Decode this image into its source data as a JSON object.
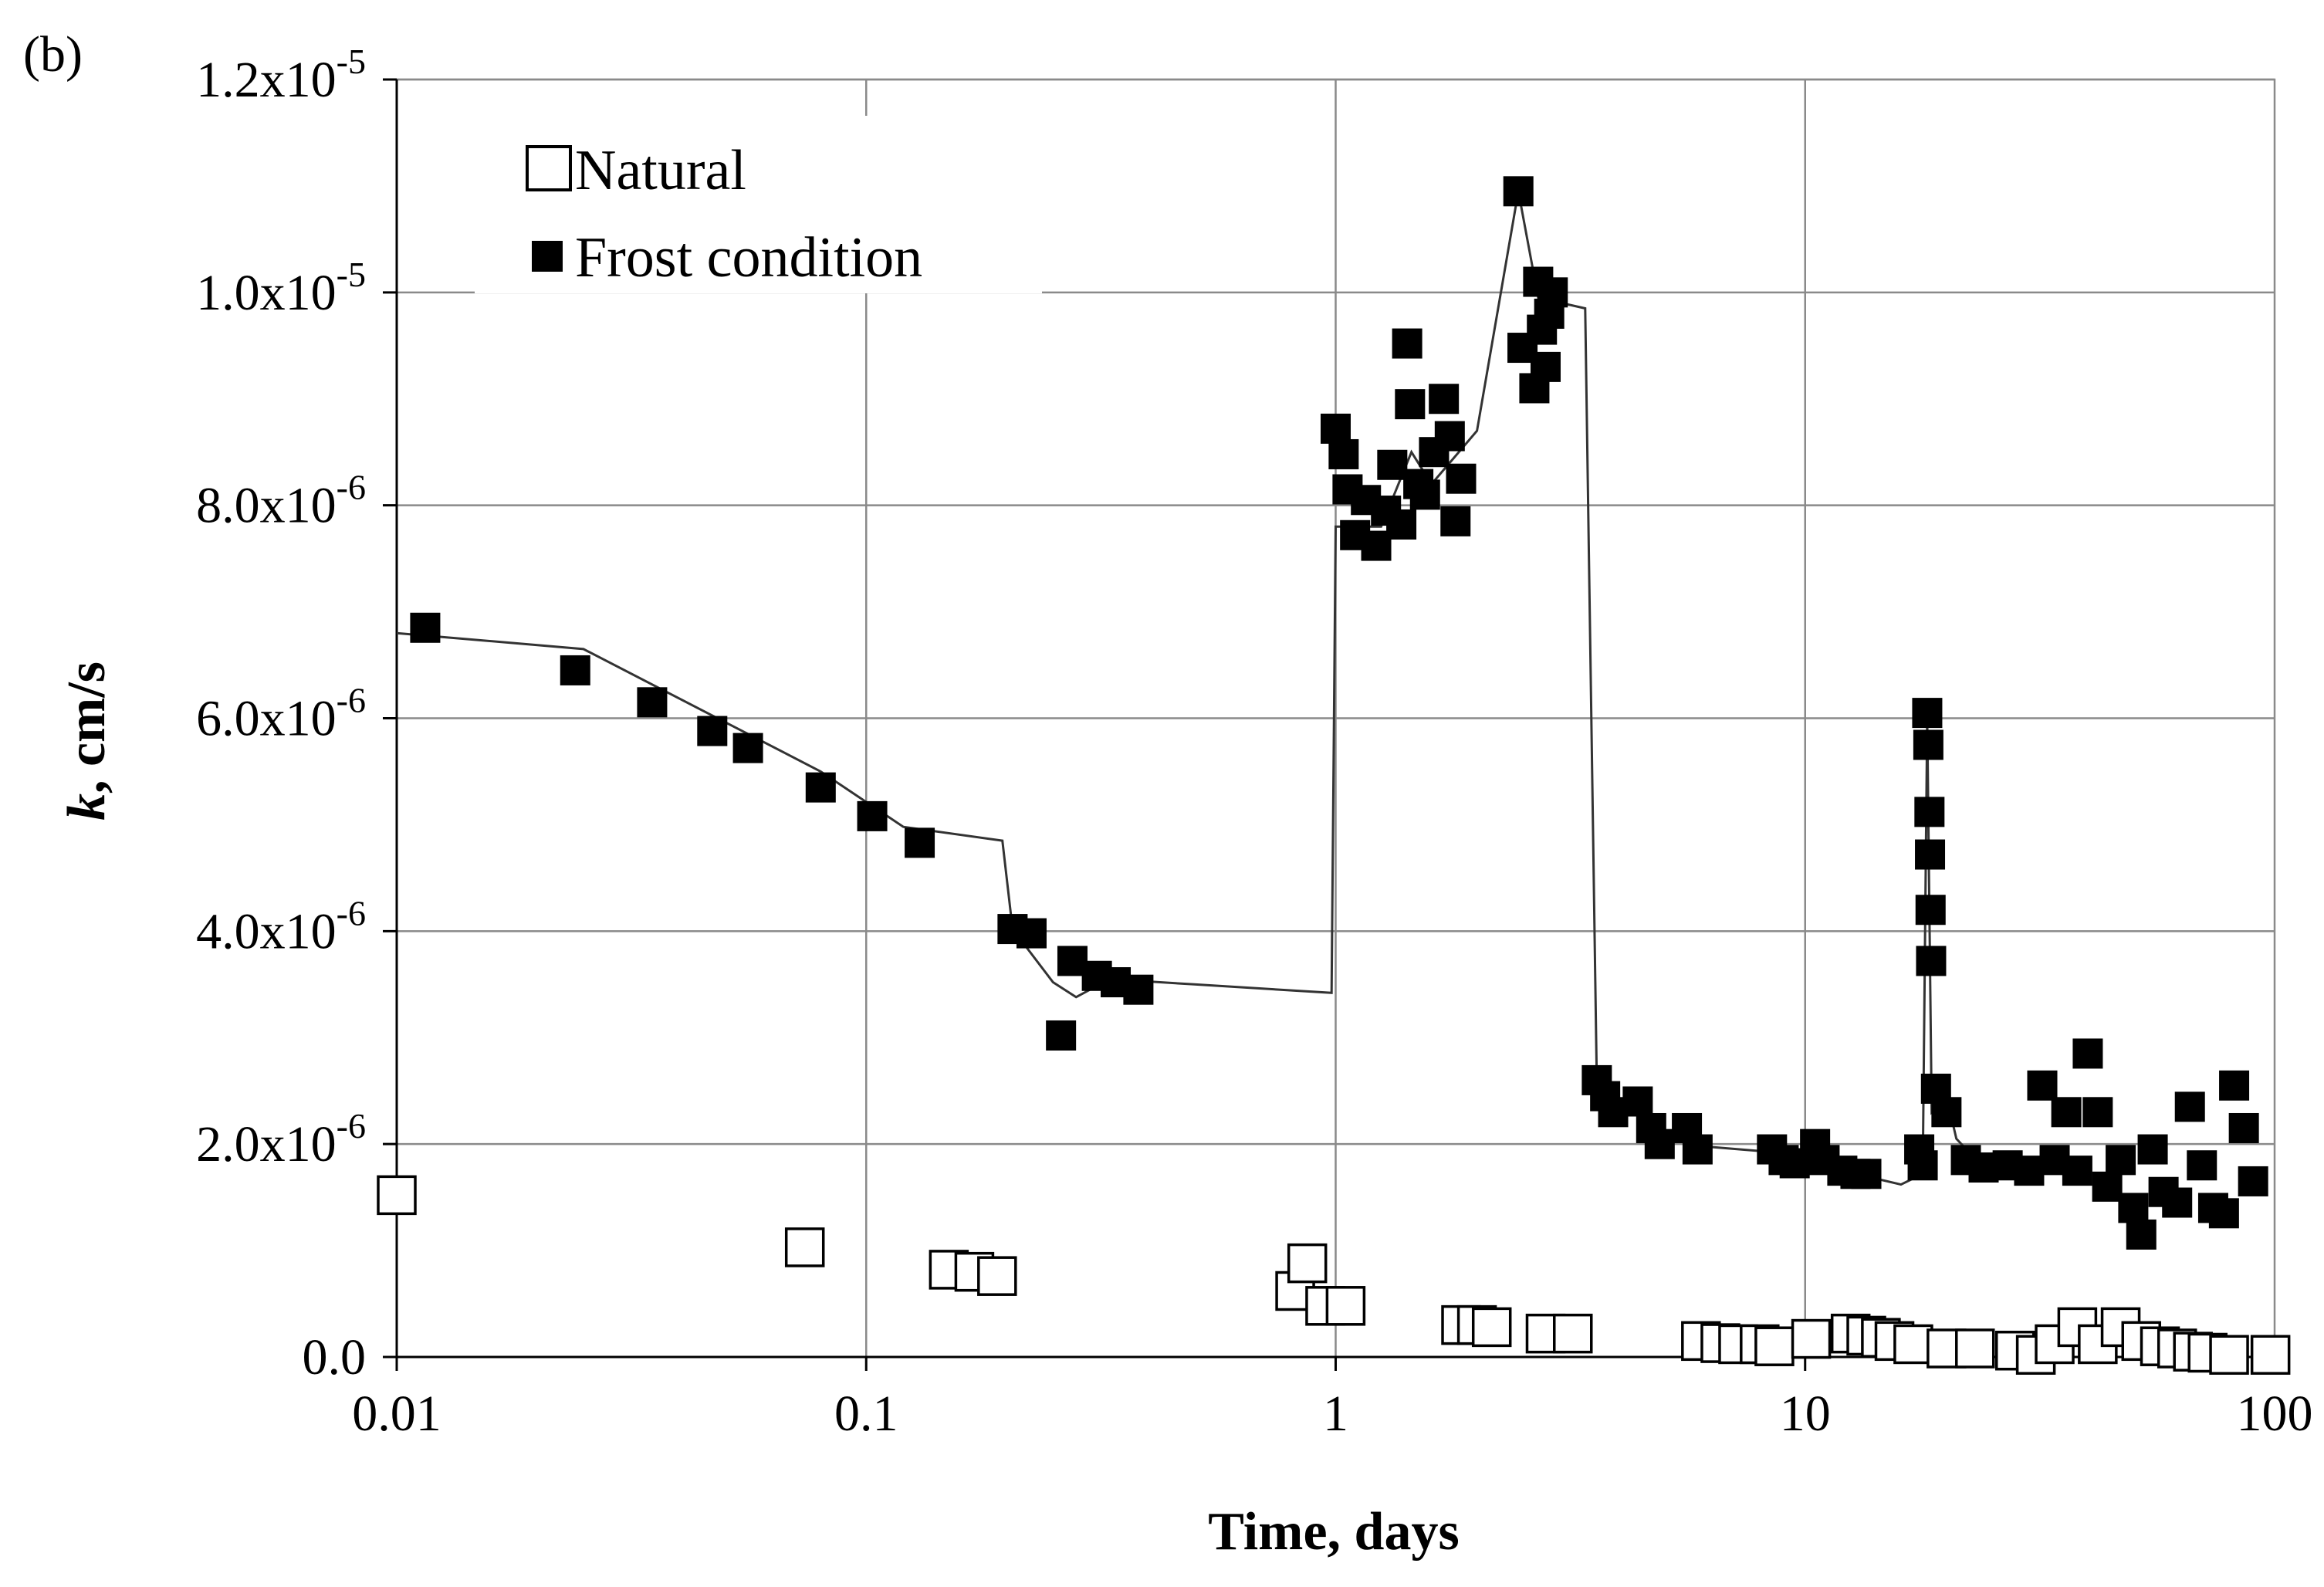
{
  "chart_data": {
    "type": "scatter",
    "panel_label": "(b)",
    "xlabel": "Time, days",
    "ylabel_var": "k",
    "ylabel_unit": ", cm/s",
    "xscale": "log",
    "xlim": [
      0.01,
      100
    ],
    "ylim": [
      0,
      1.2e-05
    ],
    "grid": true,
    "legend_position": "top-left",
    "x_ticks": [
      {
        "value": 0.01,
        "label": "0.01"
      },
      {
        "value": 0.1,
        "label": "0.1"
      },
      {
        "value": 1,
        "label": "1"
      },
      {
        "value": 10,
        "label": "10"
      },
      {
        "value": 100,
        "label": "100"
      }
    ],
    "y_ticks": [
      {
        "value": 0,
        "mant": "0.0",
        "exp": ""
      },
      {
        "value": 2e-06,
        "mant": "2.0x10",
        "exp": "-6"
      },
      {
        "value": 4e-06,
        "mant": "4.0x10",
        "exp": "-6"
      },
      {
        "value": 6e-06,
        "mant": "6.0x10",
        "exp": "-6"
      },
      {
        "value": 8e-06,
        "mant": "8.0x10",
        "exp": "-6"
      },
      {
        "value": 1e-05,
        "mant": "1.0x10",
        "exp": "-5"
      },
      {
        "value": 1.2e-05,
        "mant": "1.2x10",
        "exp": "-5"
      }
    ],
    "series": [
      {
        "name": "Natural",
        "marker": "open-square",
        "color": "#000000",
        "points": [
          [
            0.01,
            1.52e-06
          ],
          [
            0.074,
            1.03e-06
          ],
          [
            0.15,
            8.2e-07
          ],
          [
            0.17,
            8e-07
          ],
          [
            0.19,
            7.6e-07
          ],
          [
            0.82,
            6.2e-07
          ],
          [
            0.87,
            8.8e-07
          ],
          [
            0.95,
            4.8e-07
          ],
          [
            1.05,
            4.8e-07
          ],
          [
            1.85,
            3e-07
          ],
          [
            2.0,
            3e-07
          ],
          [
            2.15,
            2.8e-07
          ],
          [
            2.8,
            2.2e-07
          ],
          [
            3.2,
            2.2e-07
          ],
          [
            6.0,
            1.5e-07
          ],
          [
            6.6,
            1.3e-07
          ],
          [
            7.2,
            1.2e-07
          ],
          [
            8.0,
            1.2e-07
          ],
          [
            8.6,
            1e-07
          ],
          [
            10.3,
            1.7e-07
          ],
          [
            12.5,
            2.2e-07
          ],
          [
            13.5,
            2e-07
          ],
          [
            14.5,
            1.8e-07
          ],
          [
            15.5,
            1.5e-07
          ],
          [
            17.0,
            1.2e-07
          ],
          [
            20.0,
            8e-08
          ],
          [
            23.0,
            8e-08
          ],
          [
            28.0,
            6e-08
          ],
          [
            31.0,
            2e-08
          ],
          [
            34.0,
            1.2e-07
          ],
          [
            38.0,
            2.8e-07
          ],
          [
            42.0,
            1.2e-07
          ],
          [
            47.0,
            2.8e-07
          ],
          [
            52.0,
            1.5e-07
          ],
          [
            57.0,
            1e-07
          ],
          [
            62.0,
            8e-08
          ],
          [
            67.0,
            5e-08
          ],
          [
            72.0,
            4e-08
          ],
          [
            80.0,
            2e-08
          ],
          [
            98.0,
            2e-08
          ]
        ]
      },
      {
        "name": "Frost condition",
        "marker": "filled-square",
        "color": "#000000",
        "points": [
          [
            0.0115,
            6.85e-06
          ],
          [
            0.024,
            6.45e-06
          ],
          [
            0.035,
            6.15e-06
          ],
          [
            0.047,
            5.88e-06
          ],
          [
            0.056,
            5.72e-06
          ],
          [
            0.08,
            5.35e-06
          ],
          [
            0.103,
            5.08e-06
          ],
          [
            0.13,
            4.83e-06
          ],
          [
            0.205,
            4.02e-06
          ],
          [
            0.225,
            3.98e-06
          ],
          [
            0.26,
            3.02e-06
          ],
          [
            0.275,
            3.72e-06
          ],
          [
            0.31,
            3.58e-06
          ],
          [
            0.34,
            3.52e-06
          ],
          [
            0.38,
            3.45e-06
          ],
          [
            1.0,
            8.72e-06
          ],
          [
            1.04,
            8.48e-06
          ],
          [
            1.06,
            8.15e-06
          ],
          [
            1.1,
            7.72e-06
          ],
          [
            1.16,
            8.05e-06
          ],
          [
            1.22,
            7.62e-06
          ],
          [
            1.28,
            7.95e-06
          ],
          [
            1.32,
            8.38e-06
          ],
          [
            1.38,
            7.82e-06
          ],
          [
            1.42,
            9.52e-06
          ],
          [
            1.44,
            8.95e-06
          ],
          [
            1.5,
            8.2e-06
          ],
          [
            1.55,
            8.1e-06
          ],
          [
            1.62,
            8.5e-06
          ],
          [
            1.7,
            9e-06
          ],
          [
            1.75,
            8.65e-06
          ],
          [
            1.8,
            7.85e-06
          ],
          [
            1.85,
            8.25e-06
          ],
          [
            2.45,
            1.095e-05
          ],
          [
            2.5,
            9.48e-06
          ],
          [
            2.65,
            9.1e-06
          ],
          [
            2.7,
            1.01e-05
          ],
          [
            2.75,
            9.65e-06
          ],
          [
            2.8,
            9.3e-06
          ],
          [
            2.85,
            9.8e-06
          ],
          [
            2.9,
            1e-05
          ],
          [
            3.6,
            2.6e-06
          ],
          [
            3.75,
            2.45e-06
          ],
          [
            3.9,
            2.3e-06
          ],
          [
            4.4,
            2.4e-06
          ],
          [
            4.7,
            2.15e-06
          ],
          [
            4.9,
            2e-06
          ],
          [
            5.6,
            2.15e-06
          ],
          [
            5.9,
            1.95e-06
          ],
          [
            8.5,
            1.95e-06
          ],
          [
            9.0,
            1.85e-06
          ],
          [
            9.5,
            1.82e-06
          ],
          [
            10.5,
            2e-06
          ],
          [
            11.0,
            1.85e-06
          ],
          [
            12.0,
            1.75e-06
          ],
          [
            12.8,
            1.72e-06
          ],
          [
            13.5,
            1.72e-06
          ],
          [
            17.5,
            1.95e-06
          ],
          [
            17.8,
            1.8e-06
          ],
          [
            18.2,
            6.05e-06
          ],
          [
            18.3,
            5.75e-06
          ],
          [
            18.4,
            5.12e-06
          ],
          [
            18.45,
            4.72e-06
          ],
          [
            18.5,
            4.2e-06
          ],
          [
            18.55,
            3.72e-06
          ],
          [
            19.0,
            2.52e-06
          ],
          [
            20.0,
            2.3e-06
          ],
          [
            22.0,
            1.85e-06
          ],
          [
            24.0,
            1.78e-06
          ],
          [
            27.0,
            1.8e-06
          ],
          [
            30.0,
            1.75e-06
          ],
          [
            32.0,
            2.55e-06
          ],
          [
            34.0,
            1.85e-06
          ],
          [
            36.0,
            2.3e-06
          ],
          [
            38.0,
            1.75e-06
          ],
          [
            40.0,
            2.85e-06
          ],
          [
            42.0,
            2.3e-06
          ],
          [
            44.0,
            1.6e-06
          ],
          [
            47.0,
            1.85e-06
          ],
          [
            50.0,
            1.4e-06
          ],
          [
            52.0,
            1.15e-06
          ],
          [
            55.0,
            1.95e-06
          ],
          [
            58.0,
            1.55e-06
          ],
          [
            62.0,
            1.45e-06
          ],
          [
            66.0,
            2.35e-06
          ],
          [
            70.0,
            1.8e-06
          ],
          [
            74.0,
            1.4e-06
          ],
          [
            78.0,
            1.35e-06
          ],
          [
            82.0,
            2.55e-06
          ],
          [
            86.0,
            2.15e-06
          ],
          [
            90.0,
            1.65e-06
          ]
        ]
      }
    ],
    "trend_line": {
      "name": "Frost condition trend",
      "points": [
        [
          0.01,
          6.8e-06
        ],
        [
          0.025,
          6.65e-06
        ],
        [
          0.08,
          5.5e-06
        ],
        [
          0.12,
          4.98e-06
        ],
        [
          0.195,
          4.85e-06
        ],
        [
          0.205,
          4.02e-06
        ],
        [
          0.25,
          3.52e-06
        ],
        [
          0.28,
          3.38e-06
        ],
        [
          0.33,
          3.55e-06
        ],
        [
          0.5,
          3.5e-06
        ],
        [
          0.98,
          3.42e-06
        ],
        [
          1.0,
          7.8e-06
        ],
        [
          1.25,
          7.8e-06
        ],
        [
          1.45,
          8.5e-06
        ],
        [
          1.6,
          8.2e-06
        ],
        [
          2.0,
          8.7e-06
        ],
        [
          2.45,
          1.095e-05
        ],
        [
          2.7,
          9.95e-06
        ],
        [
          3.4,
          9.85e-06
        ],
        [
          3.6,
          2.55e-06
        ],
        [
          5.0,
          2.1e-06
        ],
        [
          6.0,
          1.98e-06
        ],
        [
          10.0,
          1.9e-06
        ],
        [
          12.0,
          1.75e-06
        ],
        [
          16.0,
          1.62e-06
        ],
        [
          17.8,
          1.72e-06
        ],
        [
          18.2,
          6e-06
        ],
        [
          18.6,
          2.3e-06
        ],
        [
          20.0,
          2.45e-06
        ],
        [
          21.0,
          2.05e-06
        ],
        [
          24.0,
          1.78e-06
        ]
      ]
    },
    "legend": [
      {
        "label": "Natural",
        "marker": "open-square"
      },
      {
        "label": "Frost condition",
        "marker": "filled-square"
      }
    ]
  }
}
